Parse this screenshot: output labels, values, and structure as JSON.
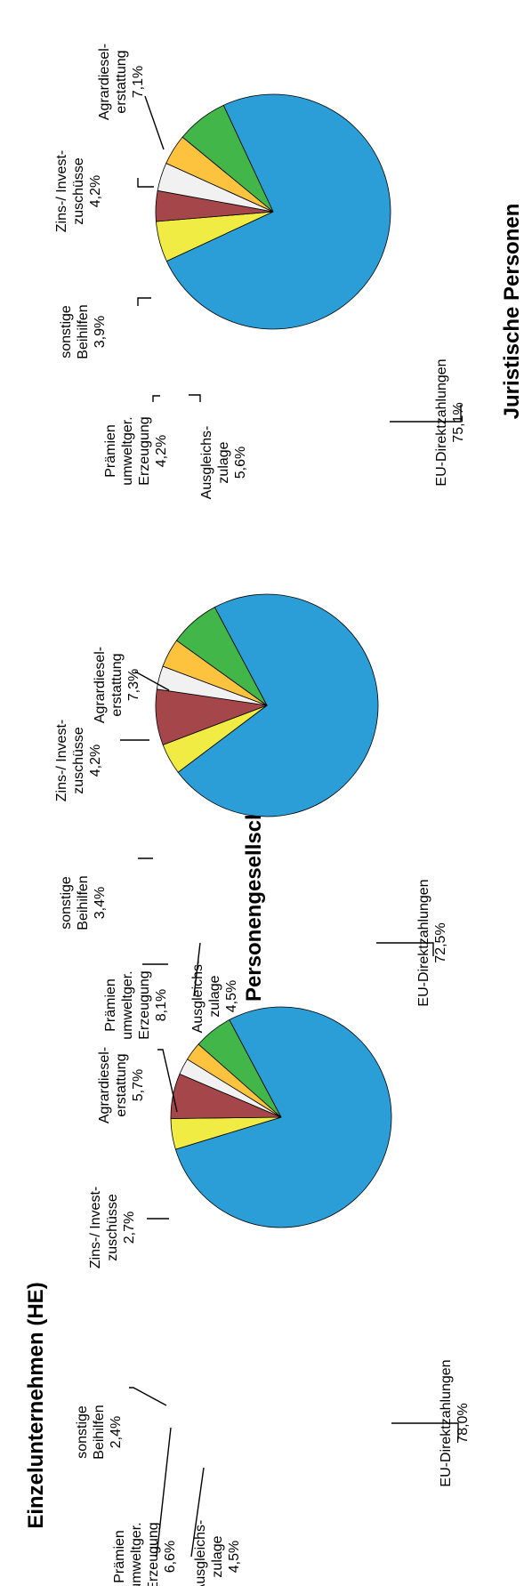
{
  "chart_data": [
    {
      "type": "pie",
      "title": "Einzelunternehmen (HE)",
      "slices": [
        {
          "key": "eu",
          "label_lines": [
            "EU-Direktzahlungen"
          ],
          "value_text": "78,0%",
          "value": 78.0,
          "color": "#2b9ed8"
        },
        {
          "key": "ausgleich",
          "label_lines": [
            "Ausgleichs-",
            "zulage"
          ],
          "value_text": "4,5%",
          "value": 4.5,
          "color": "#f0ec44"
        },
        {
          "key": "praemien",
          "label_lines": [
            "Prämien",
            "umweltger.",
            "Erzeugung"
          ],
          "value_text": "6,6%",
          "value": 6.6,
          "color": "#a5474a"
        },
        {
          "key": "sonstige",
          "label_lines": [
            "sonstige",
            "Beihilfen"
          ],
          "value_text": "2,4%",
          "value": 2.4,
          "color": "#f1f1f1"
        },
        {
          "key": "zins",
          "label_lines": [
            "Zins-/ Invest-",
            "zuschüsse"
          ],
          "value_text": "2,7%",
          "value": 2.7,
          "color": "#fdc23e"
        },
        {
          "key": "agrar",
          "label_lines": [
            "Agrardiesel-",
            "erstattung"
          ],
          "value_text": "5,7%",
          "value": 5.7,
          "color": "#43b649"
        }
      ]
    },
    {
      "type": "pie",
      "title": "Personengesellschaften (HE)",
      "slices": [
        {
          "key": "eu",
          "label_lines": [
            "EU-Direktzahlungen"
          ],
          "value_text": "72,5%",
          "value": 72.5,
          "color": "#2b9ed8"
        },
        {
          "key": "ausgleich",
          "label_lines": [
            "Ausgleichs-",
            "zulage"
          ],
          "value_text": "4,5%",
          "value": 4.5,
          "color": "#f0ec44"
        },
        {
          "key": "praemien",
          "label_lines": [
            "Prämien",
            "umweltger.",
            "Erzeugung"
          ],
          "value_text": "8,1%",
          "value": 8.1,
          "color": "#a5474a"
        },
        {
          "key": "sonstige",
          "label_lines": [
            "sonstige",
            "Beihilfen"
          ],
          "value_text": "3,4%",
          "value": 3.4,
          "color": "#f1f1f1"
        },
        {
          "key": "zins",
          "label_lines": [
            "Zins-/ Invest-",
            "zuschüsse"
          ],
          "value_text": "4,2%",
          "value": 4.2,
          "color": "#fdc23e"
        },
        {
          "key": "agrar",
          "label_lines": [
            "Agrardiesel-",
            "erstattung"
          ],
          "value_text": "7,3%",
          "value": 7.3,
          "color": "#43b649"
        }
      ]
    },
    {
      "type": "pie",
      "title": "Juristische Personen",
      "slices": [
        {
          "key": "eu",
          "label_lines": [
            "EU-Direktzahlungen"
          ],
          "value_text": "75,1%",
          "value": 75.1,
          "color": "#2b9ed8"
        },
        {
          "key": "ausgleich",
          "label_lines": [
            "Ausgleichs-",
            "zulage"
          ],
          "value_text": "5,6%",
          "value": 5.6,
          "color": "#f0ec44"
        },
        {
          "key": "praemien",
          "label_lines": [
            "Prämien",
            "umweltger.",
            "Erzeugung"
          ],
          "value_text": "4,2%",
          "value": 4.2,
          "color": "#a5474a"
        },
        {
          "key": "sonstige",
          "label_lines": [
            "sonstige",
            "Beihilfen"
          ],
          "value_text": "3,9%",
          "value": 3.9,
          "color": "#f1f1f1"
        },
        {
          "key": "zins",
          "label_lines": [
            "Zins-/ Invest-",
            "zuschüsse"
          ],
          "value_text": "4,2%",
          "value": 4.2,
          "color": "#fdc23e"
        },
        {
          "key": "agrar",
          "label_lines": [
            "Agrardiesel-",
            "erstattung"
          ],
          "value_text": "7,1%",
          "value": 7.1,
          "color": "#43b649"
        }
      ]
    }
  ]
}
